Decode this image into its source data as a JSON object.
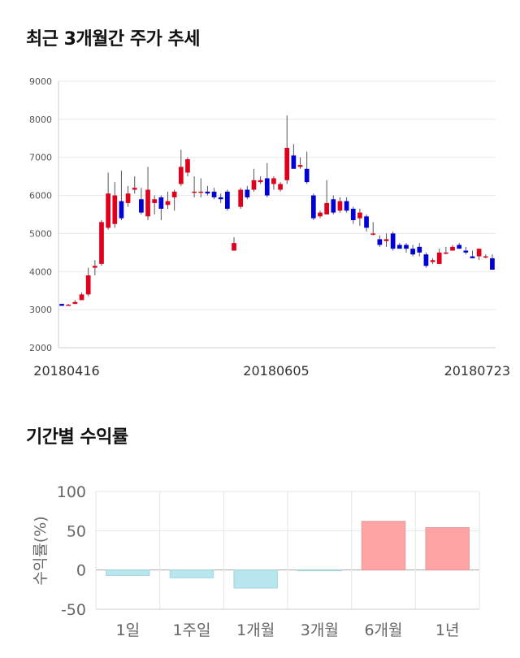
{
  "chart_data": [
    {
      "type": "candlestick",
      "title": "최근 3개월간 주가 추세",
      "ylim": [
        2000,
        9000
      ],
      "yticks": [
        "9000",
        "8000",
        "7000",
        "6000",
        "5000",
        "4000",
        "3000",
        "2000"
      ],
      "xlabels": [
        "20180416",
        "20180605",
        "20180723"
      ],
      "grid": true,
      "up_color": "#e0001b",
      "down_color": "#0000d8",
      "candles": [
        [
          3150,
          3150,
          3100,
          3100
        ],
        [
          3100,
          3150,
          3100,
          3130
        ],
        [
          3150,
          3250,
          3150,
          3200
        ],
        [
          3250,
          3450,
          3250,
          3400
        ],
        [
          3400,
          4100,
          3350,
          3900
        ],
        [
          4100,
          4300,
          3900,
          4150
        ],
        [
          4200,
          5350,
          4150,
          5300
        ],
        [
          5150,
          6600,
          5100,
          6050
        ],
        [
          5250,
          6350,
          5150,
          6000
        ],
        [
          5850,
          6650,
          5350,
          5400
        ],
        [
          5800,
          6250,
          5700,
          6050
        ],
        [
          6150,
          6500,
          6050,
          6200
        ],
        [
          5900,
          6200,
          5500,
          5550
        ],
        [
          5450,
          6750,
          5350,
          6150
        ],
        [
          5800,
          6000,
          5500,
          5900
        ],
        [
          5950,
          6000,
          5350,
          5650
        ],
        [
          5750,
          6100,
          5650,
          5850
        ],
        [
          5950,
          6150,
          5600,
          6100
        ],
        [
          6300,
          7200,
          6250,
          6750
        ],
        [
          6600,
          7000,
          6500,
          6950
        ],
        [
          6100,
          6500,
          5950,
          6100
        ],
        [
          6100,
          6450,
          5950,
          6100
        ],
        [
          6100,
          6250,
          6000,
          6050
        ],
        [
          6100,
          6200,
          5900,
          5950
        ],
        [
          5950,
          6050,
          5800,
          5900
        ],
        [
          6100,
          6150,
          5600,
          5650
        ],
        [
          4550,
          4900,
          4550,
          4750
        ],
        [
          5700,
          6200,
          5650,
          6150
        ],
        [
          6150,
          6250,
          5900,
          5950
        ],
        [
          6150,
          6700,
          6100,
          6400
        ],
        [
          6350,
          6500,
          6300,
          6400
        ],
        [
          6450,
          6850,
          5950,
          6000
        ],
        [
          6300,
          6500,
          6150,
          6450
        ],
        [
          6150,
          6350,
          6100,
          6300
        ],
        [
          6400,
          8100,
          6300,
          7250
        ],
        [
          7050,
          7350,
          6700,
          6700
        ],
        [
          6750,
          7000,
          6700,
          6800
        ],
        [
          6700,
          7150,
          6300,
          6350
        ],
        [
          6000,
          6050,
          5350,
          5400
        ],
        [
          5450,
          5600,
          5400,
          5550
        ],
        [
          5500,
          6400,
          5550,
          5800
        ],
        [
          5900,
          6000,
          5500,
          5550
        ],
        [
          5600,
          5950,
          5550,
          5850
        ],
        [
          5850,
          5950,
          5550,
          5600
        ],
        [
          5650,
          5700,
          5250,
          5350
        ],
        [
          5400,
          5650,
          5200,
          5550
        ],
        [
          5450,
          5500,
          5050,
          5150
        ],
        [
          5000,
          5300,
          4950,
          5000
        ],
        [
          4850,
          4950,
          4650,
          4700
        ],
        [
          4800,
          5000,
          4650,
          4850
        ],
        [
          5000,
          5050,
          4550,
          4600
        ],
        [
          4700,
          4750,
          4600,
          4600
        ],
        [
          4700,
          4750,
          4500,
          4600
        ],
        [
          4600,
          4700,
          4400,
          4450
        ],
        [
          4650,
          4750,
          4400,
          4500
        ],
        [
          4450,
          4500,
          4100,
          4150
        ],
        [
          4250,
          4350,
          4200,
          4300
        ],
        [
          4200,
          4600,
          4200,
          4500
        ],
        [
          4500,
          4650,
          4450,
          4500
        ],
        [
          4550,
          4700,
          4550,
          4650
        ],
        [
          4700,
          4750,
          4600,
          4600
        ],
        [
          4550,
          4650,
          4450,
          4500
        ],
        [
          4400,
          4550,
          4350,
          4350
        ],
        [
          4400,
          4600,
          4300,
          4600
        ],
        [
          4400,
          4450,
          4350,
          4400
        ],
        [
          4350,
          4450,
          4050,
          4050
        ]
      ]
    },
    {
      "type": "bar",
      "title": "기간별 수익률",
      "ylabel": "수익률(%)",
      "ylim": [
        -50,
        100
      ],
      "yticks": [
        "100",
        "50",
        "0",
        "-50"
      ],
      "categories": [
        "1일",
        "1주일",
        "1개월",
        "3개월",
        "6개월",
        "1년"
      ],
      "values": [
        -7,
        -10,
        -23,
        -1,
        62,
        54
      ],
      "negative_color": "#b8e6ef",
      "positive_color": "#ffa3a5",
      "grid": true
    }
  ]
}
